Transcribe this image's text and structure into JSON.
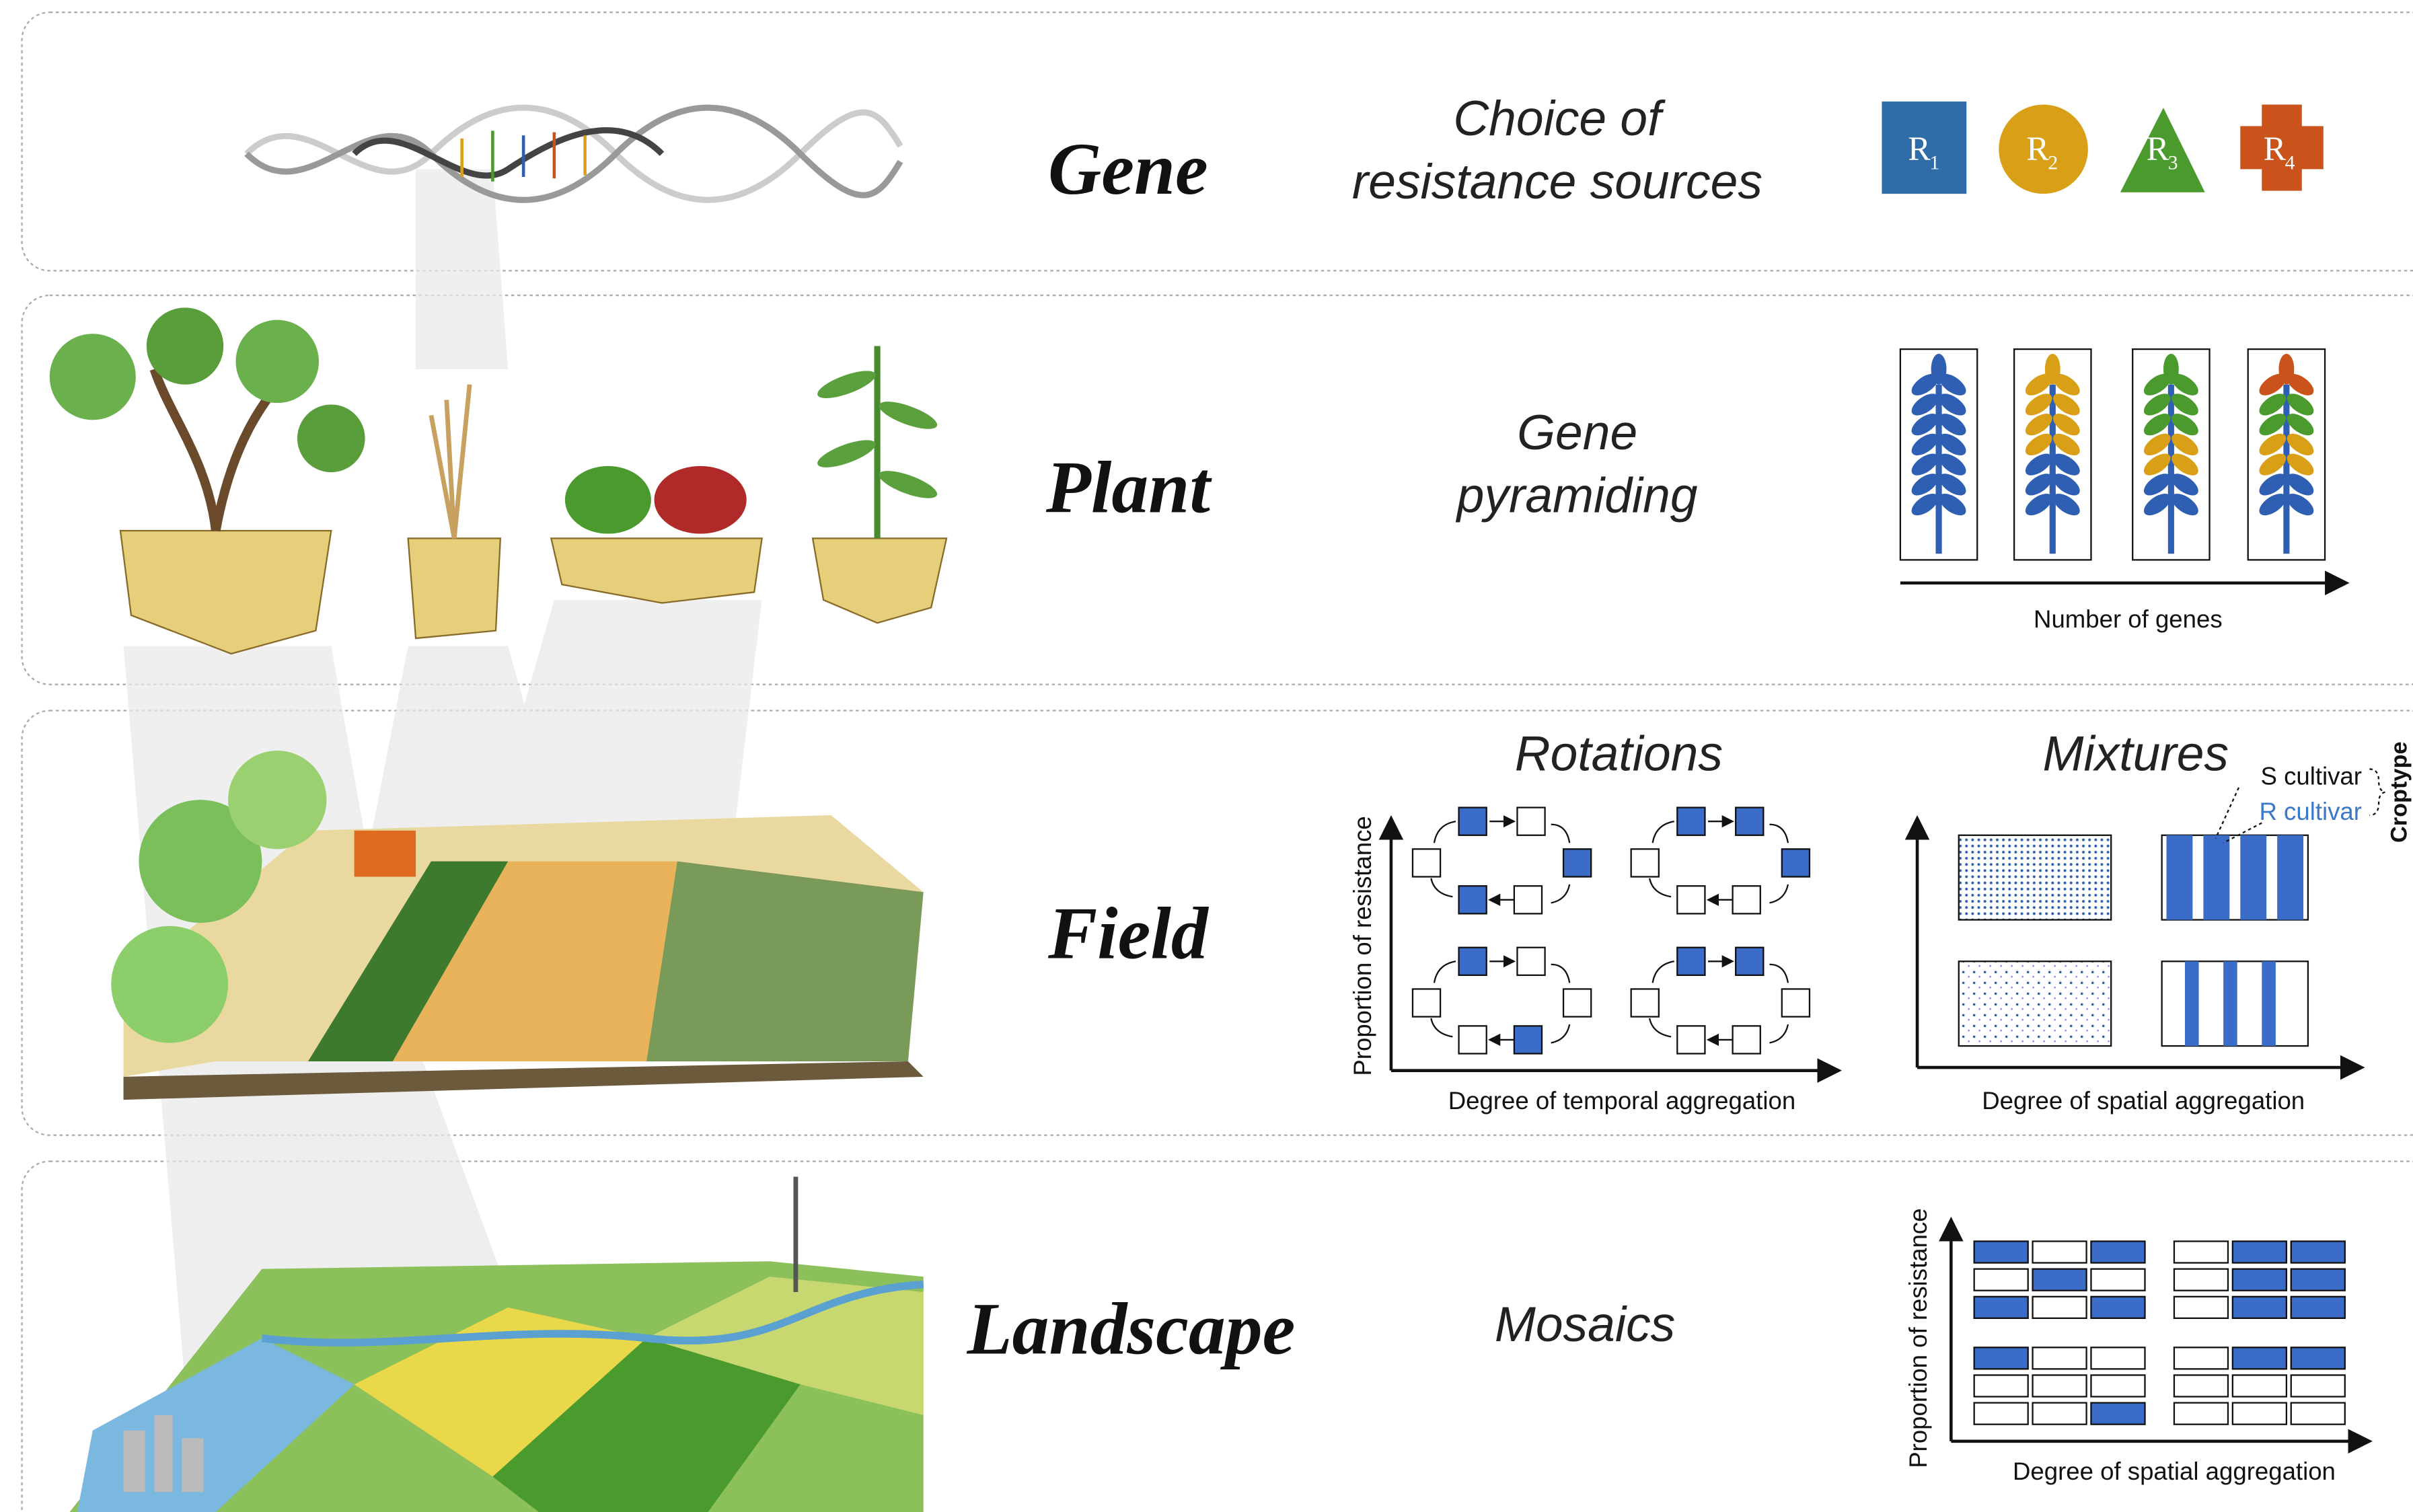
{
  "gene": {
    "level": "Gene",
    "strategy": [
      "Choice of",
      "resistance sources"
    ],
    "sources": [
      {
        "letter": "R",
        "index": "1"
      },
      {
        "letter": "R",
        "index": "2"
      },
      {
        "letter": "R",
        "index": "3"
      },
      {
        "letter": "R",
        "index": "4"
      }
    ]
  },
  "plant": {
    "level": "Plant",
    "strategy": [
      "Gene",
      "pyramiding"
    ],
    "axis_label": "Number of genes"
  },
  "field": {
    "level": "Field",
    "rotations": {
      "title": "Rotations",
      "y_label": "Proportion of resistance",
      "x_label": "Degree of temporal aggregation"
    },
    "mixtures": {
      "title": "Mixtures",
      "x_label": "Degree of spatial aggregation",
      "legend": [
        "S cultivar",
        "R cultivar"
      ],
      "legend_title": "Croptype"
    }
  },
  "landscape": {
    "level": "Landscape",
    "strategy": "Mosaics",
    "y_label": "Proportion of resistance",
    "x_label": "Degree of spatial aggregation"
  }
}
